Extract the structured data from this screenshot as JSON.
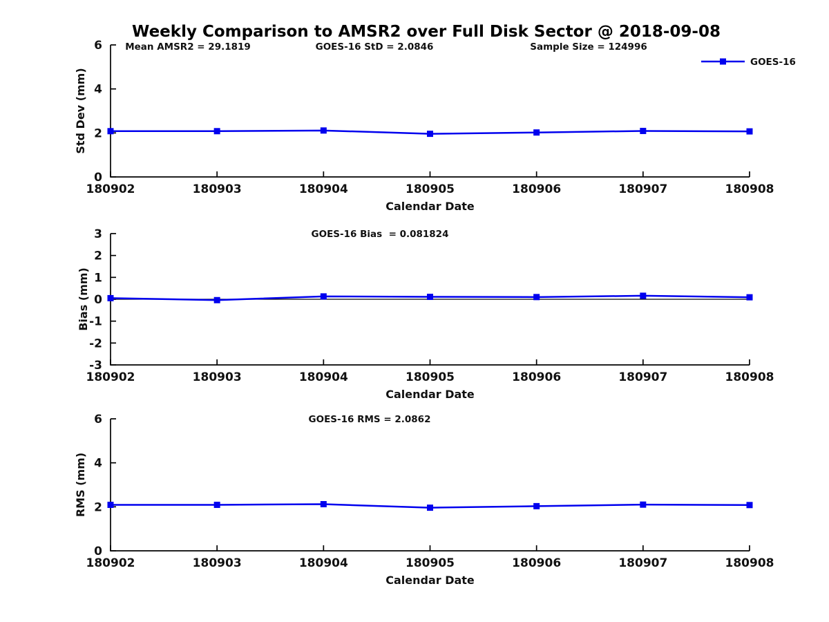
{
  "title": "Weekly Comparison to AMSR2 over Full Disk Sector @ 2018-09-08",
  "colors": {
    "series": "#0000ee",
    "axis": "#000000",
    "text": "#111111",
    "background": "#ffffff"
  },
  "legend": {
    "label": "GOES-16",
    "position": "top-right",
    "marker": "square"
  },
  "chart_data": [
    {
      "type": "line",
      "title": "",
      "xlabel": "Calendar Date",
      "ylabel": "Std Dev (mm)",
      "categories": [
        "180902",
        "180903",
        "180904",
        "180905",
        "180906",
        "180907",
        "180908"
      ],
      "series": [
        {
          "name": "GOES-16",
          "marker": "square",
          "values": [
            2.08,
            2.08,
            2.11,
            1.96,
            2.02,
            2.09,
            2.07
          ]
        }
      ],
      "ylim": [
        0,
        6
      ],
      "yticks": [
        0,
        2,
        4,
        6
      ],
      "grid": false,
      "zero_line": false,
      "annotations": [
        "Mean AMSR2 = 29.1819",
        "GOES-16 StD = 2.0846",
        "Sample Size = 124996"
      ],
      "legend": {
        "label": "GOES-16",
        "position": "top-right"
      }
    },
    {
      "type": "line",
      "title": "",
      "xlabel": "Calendar Date",
      "ylabel": "Bias (mm)",
      "categories": [
        "180902",
        "180903",
        "180904",
        "180905",
        "180906",
        "180907",
        "180908"
      ],
      "series": [
        {
          "name": "GOES-16",
          "marker": "square",
          "values": [
            0.05,
            -0.04,
            0.13,
            0.11,
            0.1,
            0.16,
            0.09
          ]
        }
      ],
      "ylim": [
        -3,
        3
      ],
      "yticks": [
        -3,
        -2,
        -1,
        0,
        1,
        2,
        3
      ],
      "grid": false,
      "zero_line": true,
      "annotations": [
        "GOES-16 Bias  = 0.081824"
      ]
    },
    {
      "type": "line",
      "title": "",
      "xlabel": "Calendar Date",
      "ylabel": "RMS (mm)",
      "categories": [
        "180902",
        "180903",
        "180904",
        "180905",
        "180906",
        "180907",
        "180908"
      ],
      "series": [
        {
          "name": "GOES-16",
          "marker": "square",
          "values": [
            2.09,
            2.09,
            2.12,
            1.96,
            2.03,
            2.1,
            2.08
          ]
        }
      ],
      "ylim": [
        0,
        6
      ],
      "yticks": [
        0,
        2,
        4,
        6
      ],
      "grid": false,
      "zero_line": false,
      "annotations": [
        "GOES-16 RMS = 2.0862"
      ]
    }
  ]
}
